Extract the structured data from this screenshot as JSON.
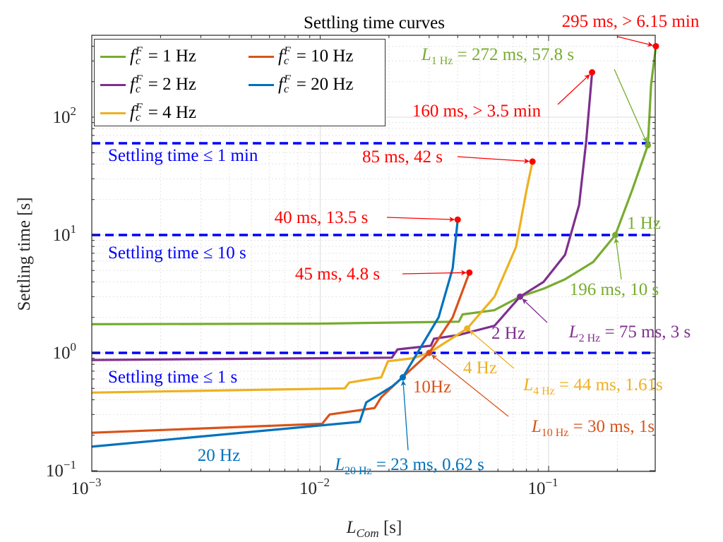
{
  "chart_data": {
    "type": "line",
    "title": "Settling time curves",
    "xlabel": {
      "main": "L",
      "sub": "Com",
      "rest": " [s]"
    },
    "ylabel": "Settling time [s]",
    "xscale": "log",
    "yscale": "log",
    "xlim": [
      0.001,
      0.293
    ],
    "ylim": [
      0.1,
      495
    ],
    "grid": true,
    "minor_grid": true,
    "legend_position": "top-left",
    "xticks": [
      {
        "base": "10",
        "exp": "−3",
        "value": 0.001
      },
      {
        "base": "10",
        "exp": "−2",
        "value": 0.01
      },
      {
        "base": "10",
        "exp": "−1",
        "value": 0.1
      }
    ],
    "yticks": [
      {
        "base": "10",
        "exp": "−1",
        "value": 0.1
      },
      {
        "base": "10",
        "exp": "0",
        "value": 1
      },
      {
        "base": "10",
        "exp": "1",
        "value": 10
      },
      {
        "base": "10",
        "exp": "2",
        "value": 100
      }
    ],
    "series": [
      {
        "name": "= 1 Hz",
        "color": "#77AC30",
        "x": [
          0.001,
          0.00975,
          0.0405,
          0.042,
          0.0578,
          0.075,
          0.095,
          0.1178,
          0.1567,
          0.196,
          0.2317,
          0.272,
          0.281,
          0.295
        ],
        "y": [
          1.75,
          1.77,
          1.84,
          2.12,
          2.3,
          3.0,
          3.5,
          4.2,
          5.9,
          10,
          23.8,
          57.8,
          190,
          400
        ]
      },
      {
        "name": "= 2 Hz",
        "color": "#7E2F8E",
        "x": [
          0.001,
          0.0206,
          0.0218,
          0.0305,
          0.0315,
          0.0405,
          0.058,
          0.075,
          0.095,
          0.118,
          0.136,
          0.146,
          0.155
        ],
        "y": [
          0.87,
          0.91,
          1.07,
          1.15,
          1.32,
          1.42,
          1.7,
          3.0,
          4.0,
          6.8,
          18,
          62,
          240
        ]
      },
      {
        "name": "= 4 Hz",
        "color": "#EDB120",
        "x": [
          0.001,
          0.0128,
          0.0134,
          0.0185,
          0.0198,
          0.0255,
          0.03,
          0.044,
          0.058,
          0.072,
          0.08,
          0.085
        ],
        "y": [
          0.46,
          0.5,
          0.56,
          0.62,
          0.85,
          0.9,
          1.0,
          1.61,
          3.0,
          7.9,
          23.8,
          42
        ]
      },
      {
        "name": "= 10 Hz",
        "color": "#D95319",
        "x": [
          0.001,
          0.0102,
          0.011,
          0.0173,
          0.0185,
          0.0225,
          0.03,
          0.038,
          0.045
        ],
        "y": [
          0.21,
          0.25,
          0.3,
          0.34,
          0.42,
          0.6,
          1.0,
          2.0,
          4.8
        ]
      },
      {
        "name": "= 20 Hz",
        "color": "#0072BD",
        "x": [
          0.001,
          0.0149,
          0.0159,
          0.0207,
          0.023,
          0.033,
          0.038,
          0.04
        ],
        "y": [
          0.16,
          0.26,
          0.38,
          0.52,
          0.62,
          2.0,
          5.2,
          13.5
        ]
      }
    ],
    "thresholds": [
      {
        "value": 60,
        "label": "Settling time ≤ 1 min"
      },
      {
        "value": 10,
        "label": "Settling time ≤ 10 s"
      },
      {
        "value": 1,
        "label": "Settling time ≤ 1 s"
      }
    ],
    "threshold_color": "#0000FF",
    "annotations": [
      {
        "main": "295 ms, > 6.15 min",
        "sub": "",
        "rest": "",
        "color": "#FF0000",
        "x": 0.295,
        "y": 400,
        "dot": true
      },
      {
        "main": "L",
        "sub": "1 Hz",
        "rest": " = 272 ms, 57.8 s",
        "color": "#77AC30",
        "x": 0.272,
        "y": 57.8,
        "dot": true
      },
      {
        "main": "160 ms, > 3.5 min",
        "sub": "",
        "rest": "",
        "color": "#FF0000",
        "x": 0.155,
        "y": 240,
        "dot": true
      },
      {
        "main": "85 ms, 42 s",
        "sub": "",
        "rest": "",
        "color": "#FF0000",
        "x": 0.085,
        "y": 42,
        "dot": true
      },
      {
        "main": "40 ms, 13.5 s",
        "sub": "",
        "rest": "",
        "color": "#FF0000",
        "x": 0.04,
        "y": 13.5,
        "dot": true
      },
      {
        "main": "45 ms, 4.8 s",
        "sub": "",
        "rest": "",
        "color": "#FF0000",
        "x": 0.045,
        "y": 4.8,
        "dot": true
      },
      {
        "main": "196 ms, 10 s",
        "sub": "",
        "rest": "",
        "color": "#77AC30",
        "x": 0.196,
        "y": 10,
        "dot": true
      },
      {
        "main": "1 Hz",
        "sub": "",
        "rest": "",
        "color": "#77AC30"
      },
      {
        "main": "L",
        "sub": "2 Hz",
        "rest": " = 75 ms, 3 s",
        "color": "#7E2F8E",
        "x": 0.075,
        "y": 3,
        "dot": true
      },
      {
        "main": "2 Hz",
        "sub": "",
        "rest": "",
        "color": "#7E2F8E"
      },
      {
        "main": "L",
        "sub": "4 Hz",
        "rest": " = 44 ms, 1.61s",
        "color": "#EDB120",
        "x": 0.044,
        "y": 1.61,
        "dot": true
      },
      {
        "main": "4 Hz",
        "sub": "",
        "rest": "",
        "color": "#EDB120"
      },
      {
        "main": "10Hz",
        "sub": "",
        "rest": "",
        "color": "#D95319"
      },
      {
        "main": "L",
        "sub": "10 Hz",
        "rest": " = 30 ms, 1s",
        "color": "#D95319",
        "x": 0.03,
        "y": 1.0,
        "dot": true
      },
      {
        "main": "L",
        "sub": "20 Hz",
        "rest": " = 23 ms, 0.62 s",
        "color": "#0072BD",
        "x": 0.023,
        "y": 0.62,
        "dot": true
      },
      {
        "main": "20 Hz",
        "sub": "",
        "rest": "",
        "color": "#0072BD"
      }
    ]
  },
  "legend": {
    "symbol": "f",
    "sup": "F",
    "sub": "c"
  }
}
